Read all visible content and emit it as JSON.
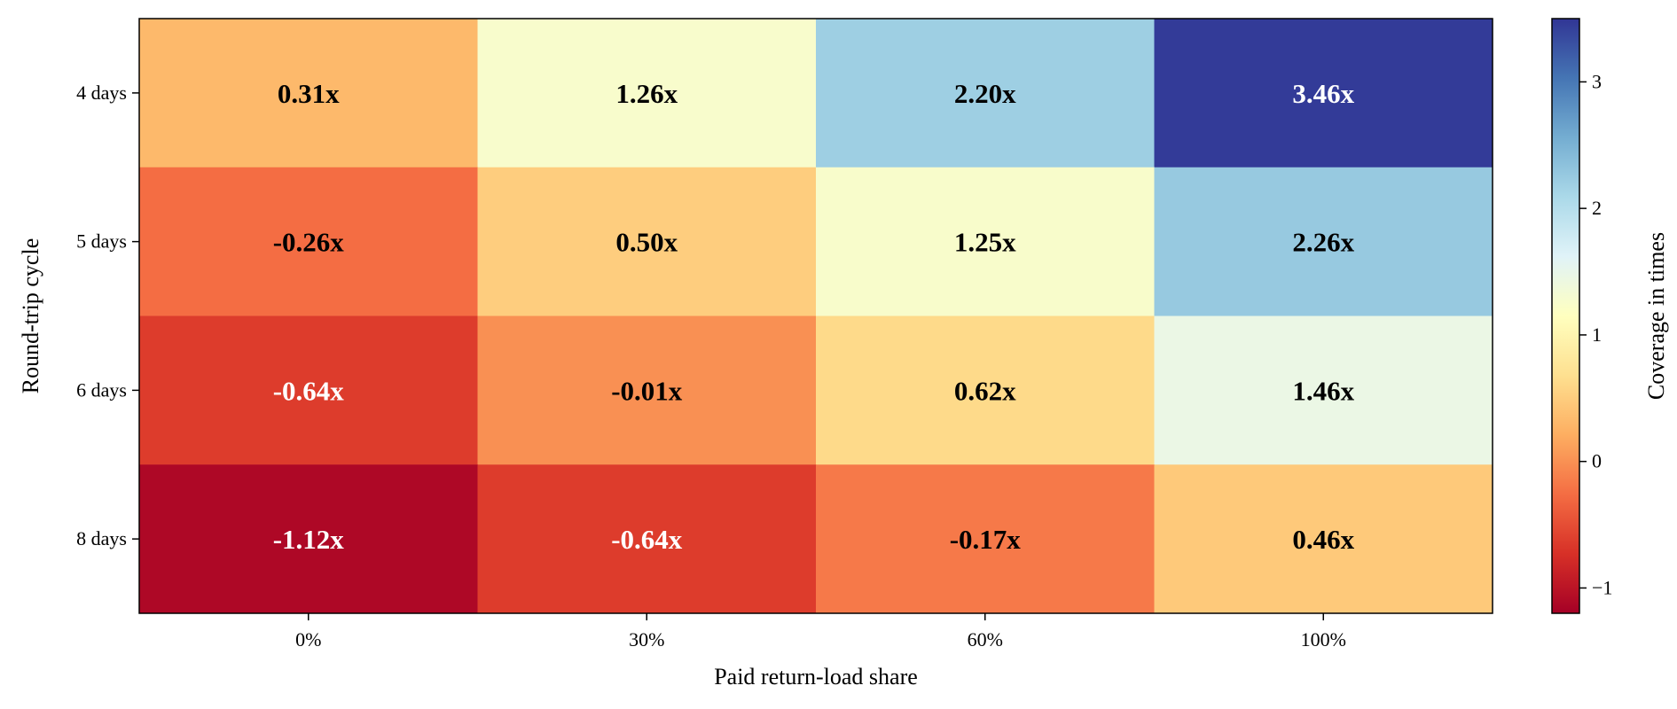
{
  "chart_data": {
    "type": "heatmap",
    "title": "",
    "xlabel": "Paid return-load share",
    "ylabel": "Round-trip cycle",
    "x_categories": [
      "0%",
      "30%",
      "60%",
      "100%"
    ],
    "y_categories": [
      "4 days",
      "5 days",
      "6 days",
      "8 days"
    ],
    "values": [
      [
        0.31,
        1.26,
        2.2,
        3.46
      ],
      [
        -0.26,
        0.5,
        1.25,
        2.26
      ],
      [
        -0.64,
        -0.01,
        0.62,
        1.46
      ],
      [
        -1.12,
        -0.64,
        -0.17,
        0.46
      ]
    ],
    "cell_labels": [
      [
        "0.31x",
        "1.26x",
        "2.20x",
        "3.46x"
      ],
      [
        "-0.26x",
        "0.50x",
        "1.25x",
        "2.26x"
      ],
      [
        "-0.64x",
        "-0.01x",
        "0.62x",
        "1.46x"
      ],
      [
        "-1.12x",
        "-0.64x",
        "-0.17x",
        "0.46x"
      ]
    ],
    "colormap": "RdYlBu",
    "colormap_stops": [
      "#a50026",
      "#d73027",
      "#f46d43",
      "#fdae61",
      "#fee090",
      "#ffffbf",
      "#e0f3f8",
      "#abd9e9",
      "#74add1",
      "#4575b4",
      "#313695"
    ],
    "color_range": [
      -1.2,
      3.5
    ],
    "colorbar": {
      "label": "Coverage in times",
      "ticks": [
        -1,
        0,
        1,
        2,
        3
      ],
      "tick_labels": [
        "−1",
        "0",
        "1",
        "2",
        "3"
      ]
    },
    "label_colors": {
      "dark_text": "#000000",
      "light_text": "#ffffff"
    },
    "grid": false,
    "legend": "colorbar-right"
  }
}
